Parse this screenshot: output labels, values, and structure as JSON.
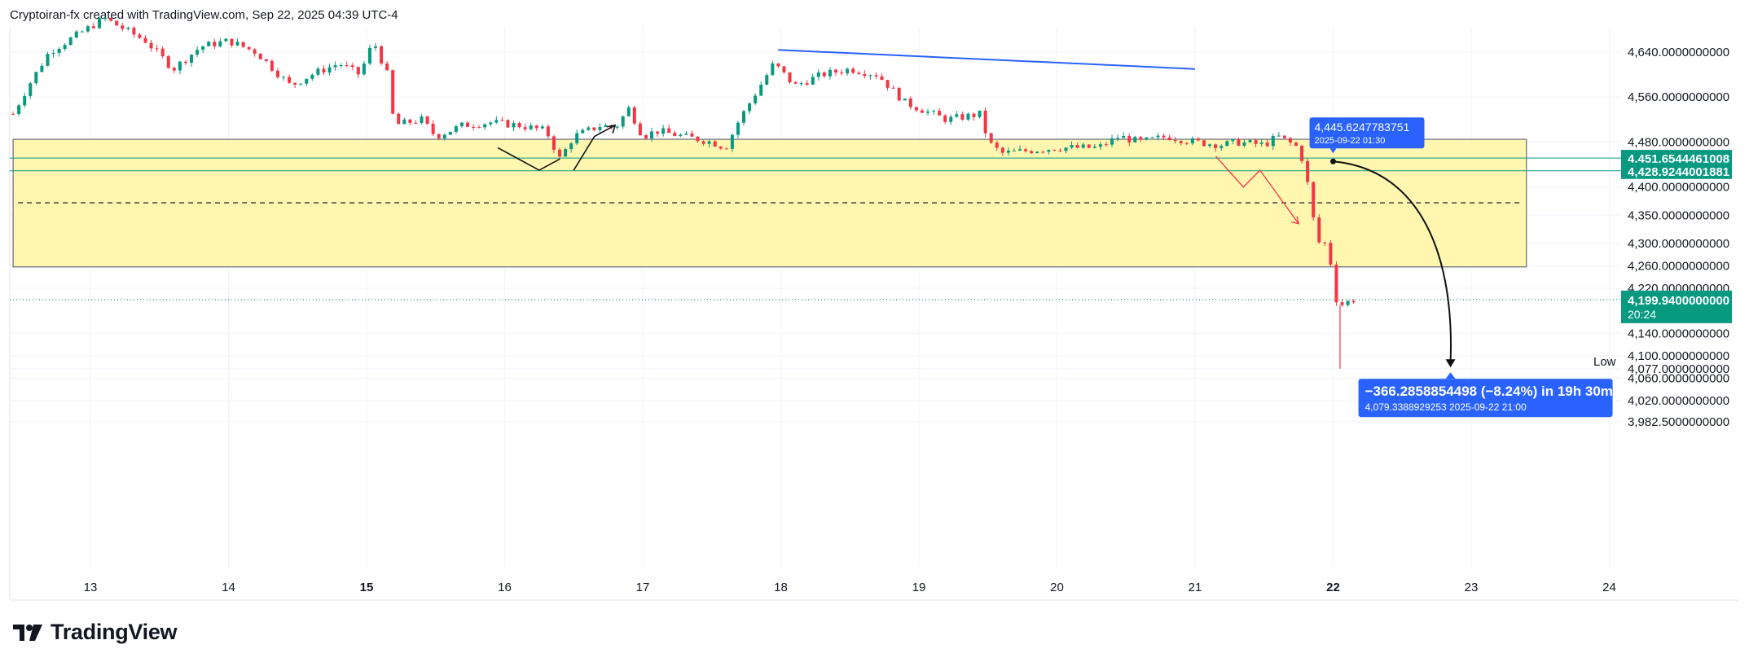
{
  "header": {
    "title": "Cryptoiran-fx created with TradingView.com, Sep 22, 2025 04:39 UTC-4"
  },
  "footer": {
    "brand": "TradingView",
    "logo_icon": "tradingview-logo-icon"
  },
  "colors": {
    "up": "#089981",
    "down": "#f23645",
    "zone_fill": "#fff7b0",
    "zone_border": "#4a4a6a",
    "trendline": "#2962ff",
    "label_blue": "#2962ff",
    "label_green": "#089981",
    "grid": "#f0f3fa"
  },
  "chart_data": {
    "type": "candlestick",
    "x_ticks": [
      {
        "label": "13",
        "day": 13,
        "bold": false
      },
      {
        "label": "14",
        "day": 14,
        "bold": false
      },
      {
        "label": "15",
        "day": 15,
        "bold": true
      },
      {
        "label": "16",
        "day": 16,
        "bold": false
      },
      {
        "label": "17",
        "day": 17,
        "bold": false
      },
      {
        "label": "18",
        "day": 18,
        "bold": false
      },
      {
        "label": "19",
        "day": 19,
        "bold": false
      },
      {
        "label": "20",
        "day": 20,
        "bold": false
      },
      {
        "label": "21",
        "day": 21,
        "bold": false
      },
      {
        "label": "22",
        "day": 22,
        "bold": true
      },
      {
        "label": "23",
        "day": 23,
        "bold": false
      },
      {
        "label": "24",
        "day": 24,
        "bold": false
      }
    ],
    "y_ticks": [
      {
        "label": "4,640.0000000000",
        "value": 4640
      },
      {
        "label": "4,560.0000000000",
        "value": 4560
      },
      {
        "label": "4,480.0000000000",
        "value": 4480
      },
      {
        "label": "4,400.0000000000",
        "value": 4400
      },
      {
        "label": "4,350.0000000000",
        "value": 4350
      },
      {
        "label": "4,300.0000000000",
        "value": 4300
      },
      {
        "label": "4,260.0000000000",
        "value": 4260
      },
      {
        "label": "4,220.0000000000",
        "value": 4220
      },
      {
        "label": "4,140.0000000000",
        "value": 4140
      },
      {
        "label": "4,100.0000000000",
        "value": 4100
      },
      {
        "label": "4,077.0000000000",
        "value": 4077
      },
      {
        "label": "4,060.0000000000",
        "value": 4060
      },
      {
        "label": "4,020.0000000000",
        "value": 4020
      },
      {
        "label": "3,982.5000000000",
        "value": 3982.5
      }
    ],
    "price_key_points": [
      [
        12.44,
        4530
      ],
      [
        12.55,
        4580
      ],
      [
        12.7,
        4640
      ],
      [
        12.9,
        4670
      ],
      [
        13.1,
        4700
      ],
      [
        13.4,
        4660
      ],
      [
        13.6,
        4610
      ],
      [
        13.8,
        4650
      ],
      [
        14.0,
        4660
      ],
      [
        14.2,
        4640
      ],
      [
        14.45,
        4580
      ],
      [
        14.6,
        4600
      ],
      [
        14.8,
        4620
      ],
      [
        14.95,
        4600
      ],
      [
        15.05,
        4660
      ],
      [
        15.15,
        4600
      ],
      [
        15.2,
        4510
      ],
      [
        15.4,
        4520
      ],
      [
        15.5,
        4490
      ],
      [
        15.7,
        4510
      ],
      [
        15.9,
        4515
      ],
      [
        16.1,
        4510
      ],
      [
        16.3,
        4500
      ],
      [
        16.4,
        4450
      ],
      [
        16.5,
        4490
      ],
      [
        16.7,
        4510
      ],
      [
        16.8,
        4505
      ],
      [
        16.9,
        4540
      ],
      [
        17.0,
        4490
      ],
      [
        17.1,
        4500
      ],
      [
        17.3,
        4490
      ],
      [
        17.5,
        4480
      ],
      [
        17.6,
        4470
      ],
      [
        17.7,
        4520
      ],
      [
        17.85,
        4580
      ],
      [
        17.95,
        4620
      ],
      [
        18.1,
        4580
      ],
      [
        18.3,
        4600
      ],
      [
        18.5,
        4610
      ],
      [
        18.7,
        4600
      ],
      [
        18.9,
        4550
      ],
      [
        19.2,
        4520
      ],
      [
        19.45,
        4530
      ],
      [
        19.5,
        4480
      ],
      [
        19.6,
        4460
      ],
      [
        19.8,
        4465
      ],
      [
        20.0,
        4470
      ],
      [
        20.3,
        4470
      ],
      [
        20.45,
        4490
      ],
      [
        20.6,
        4480
      ],
      [
        20.8,
        4490
      ],
      [
        21.0,
        4480
      ],
      [
        21.2,
        4475
      ],
      [
        21.3,
        4480
      ],
      [
        21.5,
        4475
      ],
      [
        21.6,
        4490
      ],
      [
        21.75,
        4470
      ],
      [
        21.8,
        4430
      ],
      [
        21.85,
        4350
      ],
      [
        21.9,
        4300
      ],
      [
        21.97,
        4300
      ],
      [
        22.0,
        4210
      ],
      [
        22.05,
        4190
      ],
      [
        22.15,
        4200
      ]
    ],
    "low_wick": {
      "day": 22.05,
      "value": 4077
    },
    "zone": {
      "top": 4485,
      "bottom": 4258,
      "mid_dashed": 4372,
      "from_day": 12.44,
      "to_day": 23.4
    },
    "horizontal_levels": [
      {
        "value": 4451.6544461008,
        "label": "4,451.6544461008",
        "color": "#089981"
      },
      {
        "value": 4428.9244001881,
        "label": "4,428.9244001881",
        "color": "#089981"
      }
    ],
    "current_price": {
      "value": 4199.94,
      "label": "4,199.9400000000",
      "countdown": "20:24"
    },
    "trendline": {
      "from": [
        17.98,
        4644
      ],
      "to": [
        21.0,
        4610
      ]
    },
    "black_zigzag_1": [
      [
        15.95,
        4470
      ],
      [
        16.25,
        4430
      ],
      [
        16.4,
        4450
      ]
    ],
    "black_zigzag_2": [
      [
        16.5,
        4430
      ],
      [
        16.65,
        4490
      ],
      [
        16.8,
        4510
      ]
    ],
    "red_arrow_path": [
      [
        21.15,
        4455
      ],
      [
        21.35,
        4400
      ],
      [
        21.47,
        4430
      ],
      [
        21.75,
        4335
      ]
    ],
    "measure_arrow": {
      "from": [
        22.0,
        4445.62
      ],
      "to": [
        22.85,
        4079.34
      ]
    },
    "start_label": {
      "price": "4,445.6247783751",
      "time": "2025-09-22 01:30"
    },
    "measure_label": {
      "line1": "−366.2858854498 (−8.24%) in 19h 30m",
      "line2": "4,079.3388929253  2025-09-22  21:00"
    },
    "low_label": "Low"
  }
}
